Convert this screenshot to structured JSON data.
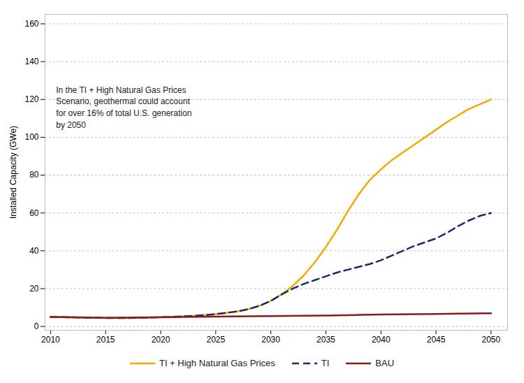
{
  "chart_data": {
    "type": "line",
    "ylabel": "Installed Capacity (GWe)",
    "xlim": [
      2009.5,
      2051.5
    ],
    "ylim": [
      -2,
      165
    ],
    "xticks": [
      2010,
      2015,
      2020,
      2025,
      2030,
      2035,
      2040,
      2045,
      2050
    ],
    "yticks": [
      0,
      20,
      40,
      60,
      80,
      100,
      120,
      140,
      160
    ],
    "grid": true,
    "legend": "bottom",
    "annotations": [
      {
        "text": "In the TI + High Natural Gas Prices\nScenario, geothermal could account\nfor over 16% of total U.S. generation\nby 2050",
        "x": 2010.5,
        "y": 128
      }
    ],
    "series": [
      {
        "name": "TI + High Natural Gas Prices",
        "color": "#F5A800",
        "line_style": "solid",
        "x": [
          2010,
          2011,
          2012,
          2013,
          2014,
          2015,
          2016,
          2017,
          2018,
          2019,
          2020,
          2021,
          2022,
          2023,
          2024,
          2025,
          2026,
          2027,
          2028,
          2029,
          2030,
          2031,
          2032,
          2033,
          2034,
          2035,
          2036,
          2037,
          2038,
          2039,
          2040,
          2041,
          2042,
          2043,
          2044,
          2045,
          2046,
          2047,
          2048,
          2049,
          2050
        ],
        "values": [
          5.0,
          4.9,
          4.8,
          4.7,
          4.6,
          4.5,
          4.5,
          4.5,
          4.6,
          4.7,
          4.9,
          5.1,
          5.3,
          5.6,
          6.0,
          6.5,
          7.2,
          8.0,
          9.2,
          11.0,
          13.5,
          17.0,
          21.5,
          27.0,
          34.0,
          42.0,
          51.0,
          61.0,
          70.0,
          77.5,
          83.0,
          88.0,
          92.0,
          96.0,
          100.0,
          104.0,
          108.0,
          111.5,
          115.0,
          117.5,
          120.0
        ]
      },
      {
        "name": "TI",
        "color": "#1B2A6B",
        "line_style": "dashed",
        "x": [
          2010,
          2011,
          2012,
          2013,
          2014,
          2015,
          2016,
          2017,
          2018,
          2019,
          2020,
          2021,
          2022,
          2023,
          2024,
          2025,
          2026,
          2027,
          2028,
          2029,
          2030,
          2031,
          2032,
          2033,
          2034,
          2035,
          2036,
          2037,
          2038,
          2039,
          2040,
          2041,
          2042,
          2043,
          2044,
          2045,
          2046,
          2047,
          2048,
          2049,
          2050
        ],
        "values": [
          5.0,
          4.9,
          4.8,
          4.7,
          4.6,
          4.5,
          4.5,
          4.5,
          4.6,
          4.7,
          4.9,
          5.1,
          5.3,
          5.6,
          6.0,
          6.5,
          7.2,
          8.0,
          9.2,
          11.0,
          13.5,
          17.0,
          20.0,
          22.5,
          24.5,
          26.5,
          28.5,
          30.0,
          31.5,
          33.0,
          35.0,
          37.5,
          40.0,
          42.5,
          44.5,
          46.5,
          49.5,
          53.0,
          56.0,
          58.5,
          60.0
        ]
      },
      {
        "name": "BAU",
        "color": "#8B1A1A",
        "line_style": "solid",
        "x": [
          2010,
          2012,
          2015,
          2018,
          2020,
          2022,
          2025,
          2028,
          2030,
          2033,
          2035,
          2038,
          2040,
          2043,
          2045,
          2047,
          2050
        ],
        "values": [
          5.0,
          4.8,
          4.6,
          4.7,
          4.8,
          5.0,
          5.2,
          5.4,
          5.5,
          5.7,
          5.8,
          6.1,
          6.3,
          6.5,
          6.6,
          6.8,
          7.0
        ]
      }
    ]
  }
}
